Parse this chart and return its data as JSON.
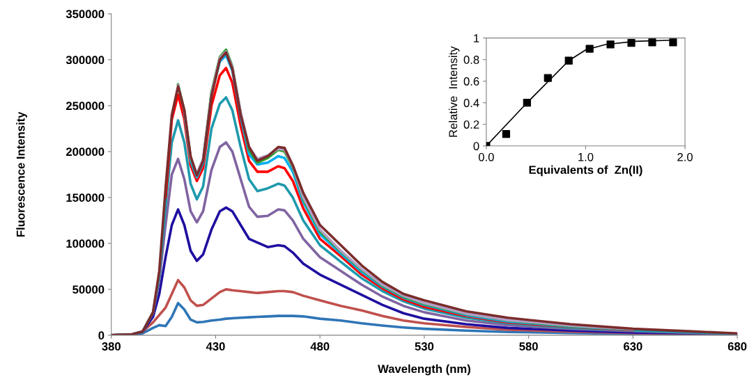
{
  "chart_data": [
    {
      "type": "line",
      "xlabel": "Wavelength (nm)",
      "ylabel": "Fluorescence Intensity",
      "xlim": [
        380,
        680
      ],
      "xticks": [
        380,
        430,
        480,
        530,
        580,
        630,
        680
      ],
      "ylim": [
        0,
        350000
      ],
      "yticks": [
        0,
        50000,
        100000,
        150000,
        200000,
        250000,
        300000,
        350000
      ],
      "grid": false,
      "legend": false,
      "marker": "none",
      "line_style": "solid",
      "x": [
        380,
        390,
        395,
        400,
        403,
        406,
        409,
        412,
        415,
        418,
        421,
        424,
        428,
        432,
        435,
        438,
        442,
        446,
        450,
        455,
        460,
        463,
        467,
        472,
        480,
        490,
        500,
        510,
        520,
        530,
        550,
        570,
        600,
        630,
        660,
        680
      ],
      "series": [
        {
          "color": "#2e75b6",
          "values": [
            0,
            500,
            2000,
            8000,
            11000,
            10000,
            20000,
            35000,
            28000,
            17000,
            14000,
            14500,
            16000,
            17000,
            18000,
            18500,
            19000,
            19500,
            20000,
            20500,
            21000,
            21000,
            21000,
            20500,
            18000,
            16000,
            13000,
            10500,
            8500,
            7000,
            5000,
            3500,
            2500,
            1500,
            1000,
            500
          ]
        },
        {
          "color": "#c0504d",
          "values": [
            0,
            800,
            4000,
            14000,
            22000,
            30000,
            45000,
            60000,
            52000,
            38000,
            32000,
            33000,
            40000,
            47000,
            50000,
            49000,
            48000,
            47000,
            46000,
            47000,
            48000,
            48000,
            47000,
            43000,
            38000,
            32000,
            27000,
            21000,
            16000,
            13000,
            9000,
            6000,
            4000,
            2500,
            1500,
            1000
          ]
        },
        {
          "color": "#1f0fa0",
          "values": [
            0,
            800,
            4000,
            20000,
            45000,
            85000,
            120000,
            137000,
            120000,
            92000,
            81000,
            88000,
            115000,
            135000,
            139000,
            135000,
            120000,
            105000,
            101000,
            96000,
            98000,
            97000,
            90000,
            78000,
            66000,
            55000,
            44000,
            33000,
            24000,
            18000,
            12000,
            8000,
            5000,
            3000,
            2000,
            1000
          ]
        },
        {
          "color": "#8064a2",
          "values": [
            0,
            900,
            4000,
            24000,
            60000,
            120000,
            175000,
            192000,
            170000,
            135000,
            123000,
            135000,
            180000,
            205000,
            210000,
            200000,
            170000,
            140000,
            129000,
            130000,
            137000,
            136000,
            125000,
            105000,
            85000,
            70000,
            55000,
            42000,
            32000,
            25000,
            16000,
            11000,
            7000,
            4500,
            2500,
            1500
          ]
        },
        {
          "color": "#1f9aad",
          "values": [
            0,
            1000,
            4000,
            25000,
            65000,
            140000,
            210000,
            234000,
            210000,
            165000,
            148000,
            162000,
            225000,
            252000,
            259000,
            245000,
            205000,
            170000,
            157000,
            160000,
            165000,
            163000,
            150000,
            125000,
            98000,
            80000,
            62000,
            48000,
            37000,
            29000,
            19000,
            13000,
            8000,
            5000,
            3000,
            1500
          ]
        },
        {
          "color": "#ff0000",
          "values": [
            null,
            null,
            null,
            null,
            null,
            150000,
            235000,
            262000,
            235000,
            185000,
            168000,
            182000,
            250000,
            283000,
            291000,
            275000,
            228000,
            190000,
            178000,
            178000,
            184000,
            182000,
            168000,
            138000,
            105000,
            86000,
            66000,
            51000,
            39000,
            31000,
            21000,
            14000,
            9000,
            5500,
            null,
            null
          ]
        },
        {
          "color": "#00b0f0",
          "values": [
            null,
            null,
            null,
            null,
            null,
            null,
            null,
            null,
            242000,
            190000,
            172000,
            188000,
            262000,
            298000,
            305000,
            288000,
            238000,
            197000,
            186000,
            188000,
            195000,
            193000,
            178000,
            145000,
            110000,
            89000,
            69000,
            53000,
            41000,
            33000,
            22000,
            15000,
            9500,
            6000,
            null,
            null
          ]
        },
        {
          "color": "#2ca02c",
          "values": [
            null,
            null,
            null,
            null,
            null,
            null,
            null,
            273000,
            245000,
            193000,
            175000,
            191000,
            265000,
            303000,
            311000,
            293000,
            242000,
            202000,
            188000,
            193000,
            202000,
            200000,
            183000,
            148000,
            113000,
            91000,
            71000,
            54000,
            42000,
            34000,
            23000,
            16000,
            10000,
            6500,
            null,
            null
          ]
        },
        {
          "color": "#b09fc8",
          "values": [
            null,
            null,
            null,
            null,
            null,
            null,
            null,
            272000,
            244000,
            194000,
            176000,
            192000,
            263000,
            302000,
            309000,
            292000,
            243000,
            205000,
            192000,
            196000,
            203000,
            202000,
            184000,
            150000,
            115000,
            92000,
            72000,
            55000,
            43000,
            35000,
            23500,
            16500,
            10500,
            6500,
            null,
            null
          ]
        },
        {
          "color": "#7b2c2c",
          "values": [
            0,
            1000,
            4000,
            25000,
            70000,
            160000,
            240000,
            271000,
            245000,
            195000,
            174000,
            190000,
            260000,
            300000,
            308000,
            290000,
            240000,
            205000,
            190000,
            195000,
            205000,
            204000,
            185000,
            155000,
            120000,
            98000,
            76000,
            58000,
            45000,
            38000,
            26000,
            19000,
            12000,
            7000,
            4000,
            2000
          ]
        }
      ]
    },
    {
      "type": "scatter",
      "xlabel": "Equivalents of  Zn(II)",
      "ylabel": "Relative  Intensity",
      "xlim": [
        0,
        2
      ],
      "xticks": [
        {
          "value": 0,
          "label": "0.0"
        },
        {
          "value": 1,
          "label": "1.0"
        },
        {
          "value": 2,
          "label": "2.0"
        }
      ],
      "ylim": [
        0,
        1
      ],
      "yticks": [
        0,
        0.2,
        0.4,
        0.6,
        0.8,
        1
      ],
      "grid": false,
      "legend": false,
      "marker": "square",
      "series": [
        {
          "color": "#000000",
          "x": [
            0,
            0.2,
            0.41,
            0.62,
            0.83,
            1.04,
            1.25,
            1.46,
            1.67,
            1.88
          ],
          "values": [
            0,
            0.11,
            0.4,
            0.63,
            0.79,
            0.9,
            0.94,
            0.955,
            0.96,
            0.96
          ]
        },
        {
          "type": "line",
          "marker": "none",
          "color": "#000000",
          "x": [
            0,
            0.41,
            0.83,
            1.0,
            1.2,
            1.5,
            1.88
          ],
          "values": [
            0,
            0.4,
            0.79,
            0.89,
            0.94,
            0.97,
            0.98
          ]
        }
      ]
    }
  ]
}
